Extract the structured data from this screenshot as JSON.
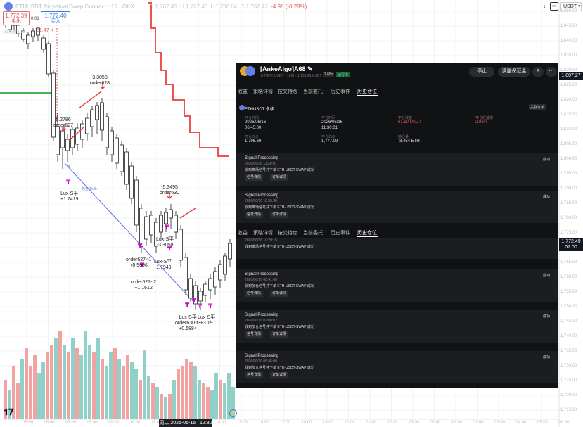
{
  "chart": {
    "symbol_title": "ETHUSDT Perpetual Swap Contract · 15 · OKX",
    "ohlc": {
      "o_label": "O",
      "o": "1,767.45",
      "h_label": "H",
      "h": "1,767.45",
      "l_label": "L",
      "l": "1,758.64",
      "c_label": "C",
      "c": "1,762.47",
      "change": "-4.98 (-0.28%)"
    },
    "sell_price": "1,772.39",
    "sell_label": "卖出",
    "buy_price": "1,772.40",
    "buy_label": "买入",
    "spread": "0.01",
    "vol_tag": "成交量 | 15",
    "vol_value": "51.47 K",
    "currency": "USDT",
    "price_axis": [
      "1,850.00",
      "1,845.00",
      "1,840.00",
      "1,835.00",
      "1,830.00",
      "1,825.00",
      "1,820.00",
      "1,815.00",
      "1,810.00",
      "1,805.00",
      "1,800.00",
      "1,795.00",
      "1,790.00",
      "1,785.00",
      "1,780.00",
      "1,775.00",
      "1,770.00",
      "1,765.00",
      "1,760.00",
      "1,755.00",
      "1,750.00",
      "1,745.00",
      "1,740.00",
      "1,735.00",
      "1,730.00",
      "1,725.00",
      "1,720.00",
      "1,715.00"
    ],
    "last_price_tag": "1,807.27",
    "cur_price_tag": "1,772.49",
    "cur_time_tag": "07:00",
    "time_axis": [
      "05:00",
      "06:00",
      "07:00",
      "08:00",
      "09:00",
      "10:00",
      "11:00",
      "12:00",
      "13:00",
      "14:00",
      "15:00",
      "16:00",
      "17:00",
      "18:00",
      "19:00",
      "20:00",
      "21:00",
      "22:00",
      "23:00",
      "00:00",
      "01:00",
      "02:00",
      "03:00",
      "04:00",
      "05:00",
      "06:00"
    ],
    "time_tag": "周二 2026-06-16",
    "time_tag_clock": "12:30",
    "annotations": {
      "a1": "3.3058",
      "a1b": "order628",
      "a2": "5.2786",
      "a2b": "order627",
      "a3": "-5.3495",
      "a3b": "order630",
      "lux1": "Lux-S平",
      "lux1b": "+1.7419",
      "lux2": "Lux-S平",
      "lux2b": "-3.3058",
      "lux3": "order627-t1",
      "lux3b": "+0.5806",
      "lux4": "Lux-S平",
      "lux4b": "-1.7949",
      "lux5": "order627-t2",
      "lux5b": "+1.1612",
      "lux6": "Lux-S平",
      "lux6b": "order630-t3",
      "lux6c": "+0.5884",
      "lux7": "Lux-S平",
      "lux7b": "+3.19",
      "trend_label": "趋势(Bull)"
    }
  },
  "panel": {
    "title": "[AnkeAlgo]A68",
    "subtitle": "合约ETHUSDT · 10倍 · 1,759.25 USDT",
    "tag1": "2.68x",
    "tag2": "运行中",
    "stop_btn": "停止",
    "margin_btn": "调整保证金",
    "tabs": [
      "收益",
      "策略详情",
      "按交持仓",
      "当前委托",
      "历史事件",
      "历史仓位"
    ],
    "active_tab": "历史仓位",
    "position": {
      "name": "ETHUSDT 永续",
      "close_btn": "关联订单",
      "open_time_label": "开仓时间",
      "open_time": "2026/06/16",
      "open_time2": "06:45:00",
      "close_time_label": "平仓时间",
      "close_time": "2026/06/16",
      "close_time2": "11:30:01",
      "pnl_label": "平仓收益",
      "pnl": "61.50 USDT",
      "pnl_rate_label": "平仓收益率",
      "pnl_rate": "2.86%",
      "open_avg_label": "开仓均价",
      "open_avg": "1,796.69",
      "close_avg_label": "平仓均价",
      "close_avg": "1,777.09",
      "qty_label": "持仓量",
      "qty": "-3.454 ETH"
    },
    "signals_top": [
      {
        "title": "Signal Processing",
        "time": "2026/06/16 11:30:01",
        "msg": "收到离场信号并下单 ETH-USDT-SWAP 成功",
        "status": "成功",
        "b1": "信号详情",
        "b2": "订单详情"
      },
      {
        "title": "Signal Processing",
        "time": "2026/06/16 10:35:30",
        "msg": "收到离场信号并下单 ETH-USDT-SWAP 成功",
        "status": "成功",
        "b1": "信号详情",
        "b2": "订单详情"
      }
    ],
    "partial_msg": "收到离场信号并下单 ETH-USDT-SWAP 成功",
    "partial_time": "2026/06/16 10:29:15",
    "signals_bottom": [
      {
        "title": "Signal Processing",
        "time": "2026/06/16 08:41:00",
        "msg": "收到加仓信号并下单 ETH-USDT-SWAP 成功",
        "status": "成功",
        "b1": "信号详情",
        "b2": "订单详情"
      },
      {
        "title": "Signal Processing",
        "time": "2026/06/16 07:00:02",
        "msg": "收到加仓信号并下单 ETH-USDT-SWAP 成功",
        "status": "成功",
        "b1": "信号详情",
        "b2": "订单详情"
      },
      {
        "title": "Signal Processing",
        "time": "2026/06/16 06:45:00",
        "msg": "收到加仓信号并下单 ETH-USDT-SWAP 成功",
        "status": "成功",
        "b1": "信号详情",
        "b2": "订单详情"
      }
    ]
  },
  "colors": {
    "up": "#26a69a",
    "down": "#ef5350",
    "stop_line": "#ef5350",
    "trend_line": "#5b6ee1",
    "marker": "#d400d4"
  }
}
